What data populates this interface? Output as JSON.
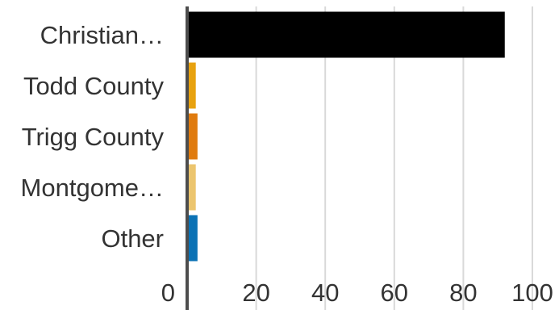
{
  "chart_data": {
    "type": "bar",
    "orientation": "horizontal",
    "categories": [
      "Christian…",
      "Todd County",
      "Trigg County",
      "Montgome…",
      "Other"
    ],
    "values": [
      92,
      2.5,
      3,
      2.5,
      3
    ],
    "colors": [
      "#000000",
      "#e8a20f",
      "#e07b0e",
      "#ecc56e",
      "#0b72b5"
    ],
    "x_ticks": [
      "0",
      "20",
      "40",
      "60",
      "80",
      "100"
    ],
    "xlim": [
      0,
      100
    ],
    "grid": true,
    "title": "",
    "xlabel": "",
    "ylabel": ""
  }
}
